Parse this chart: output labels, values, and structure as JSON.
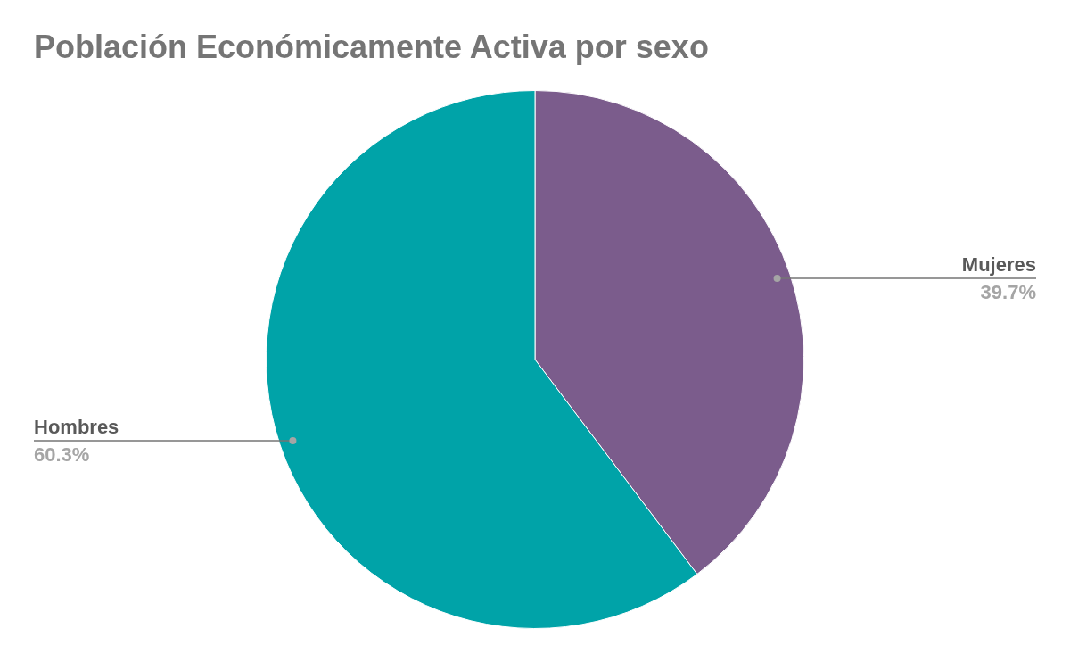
{
  "chart_data": {
    "type": "pie",
    "title": "Población Económicamente Activa por sexo",
    "categories": [
      "Mujeres",
      "Hombres"
    ],
    "values": [
      39.7,
      60.3
    ],
    "colors": [
      "#7b5c8c",
      "#00a3a8"
    ],
    "value_labels": [
      "39.7%",
      "60.3%"
    ],
    "legend": false
  }
}
